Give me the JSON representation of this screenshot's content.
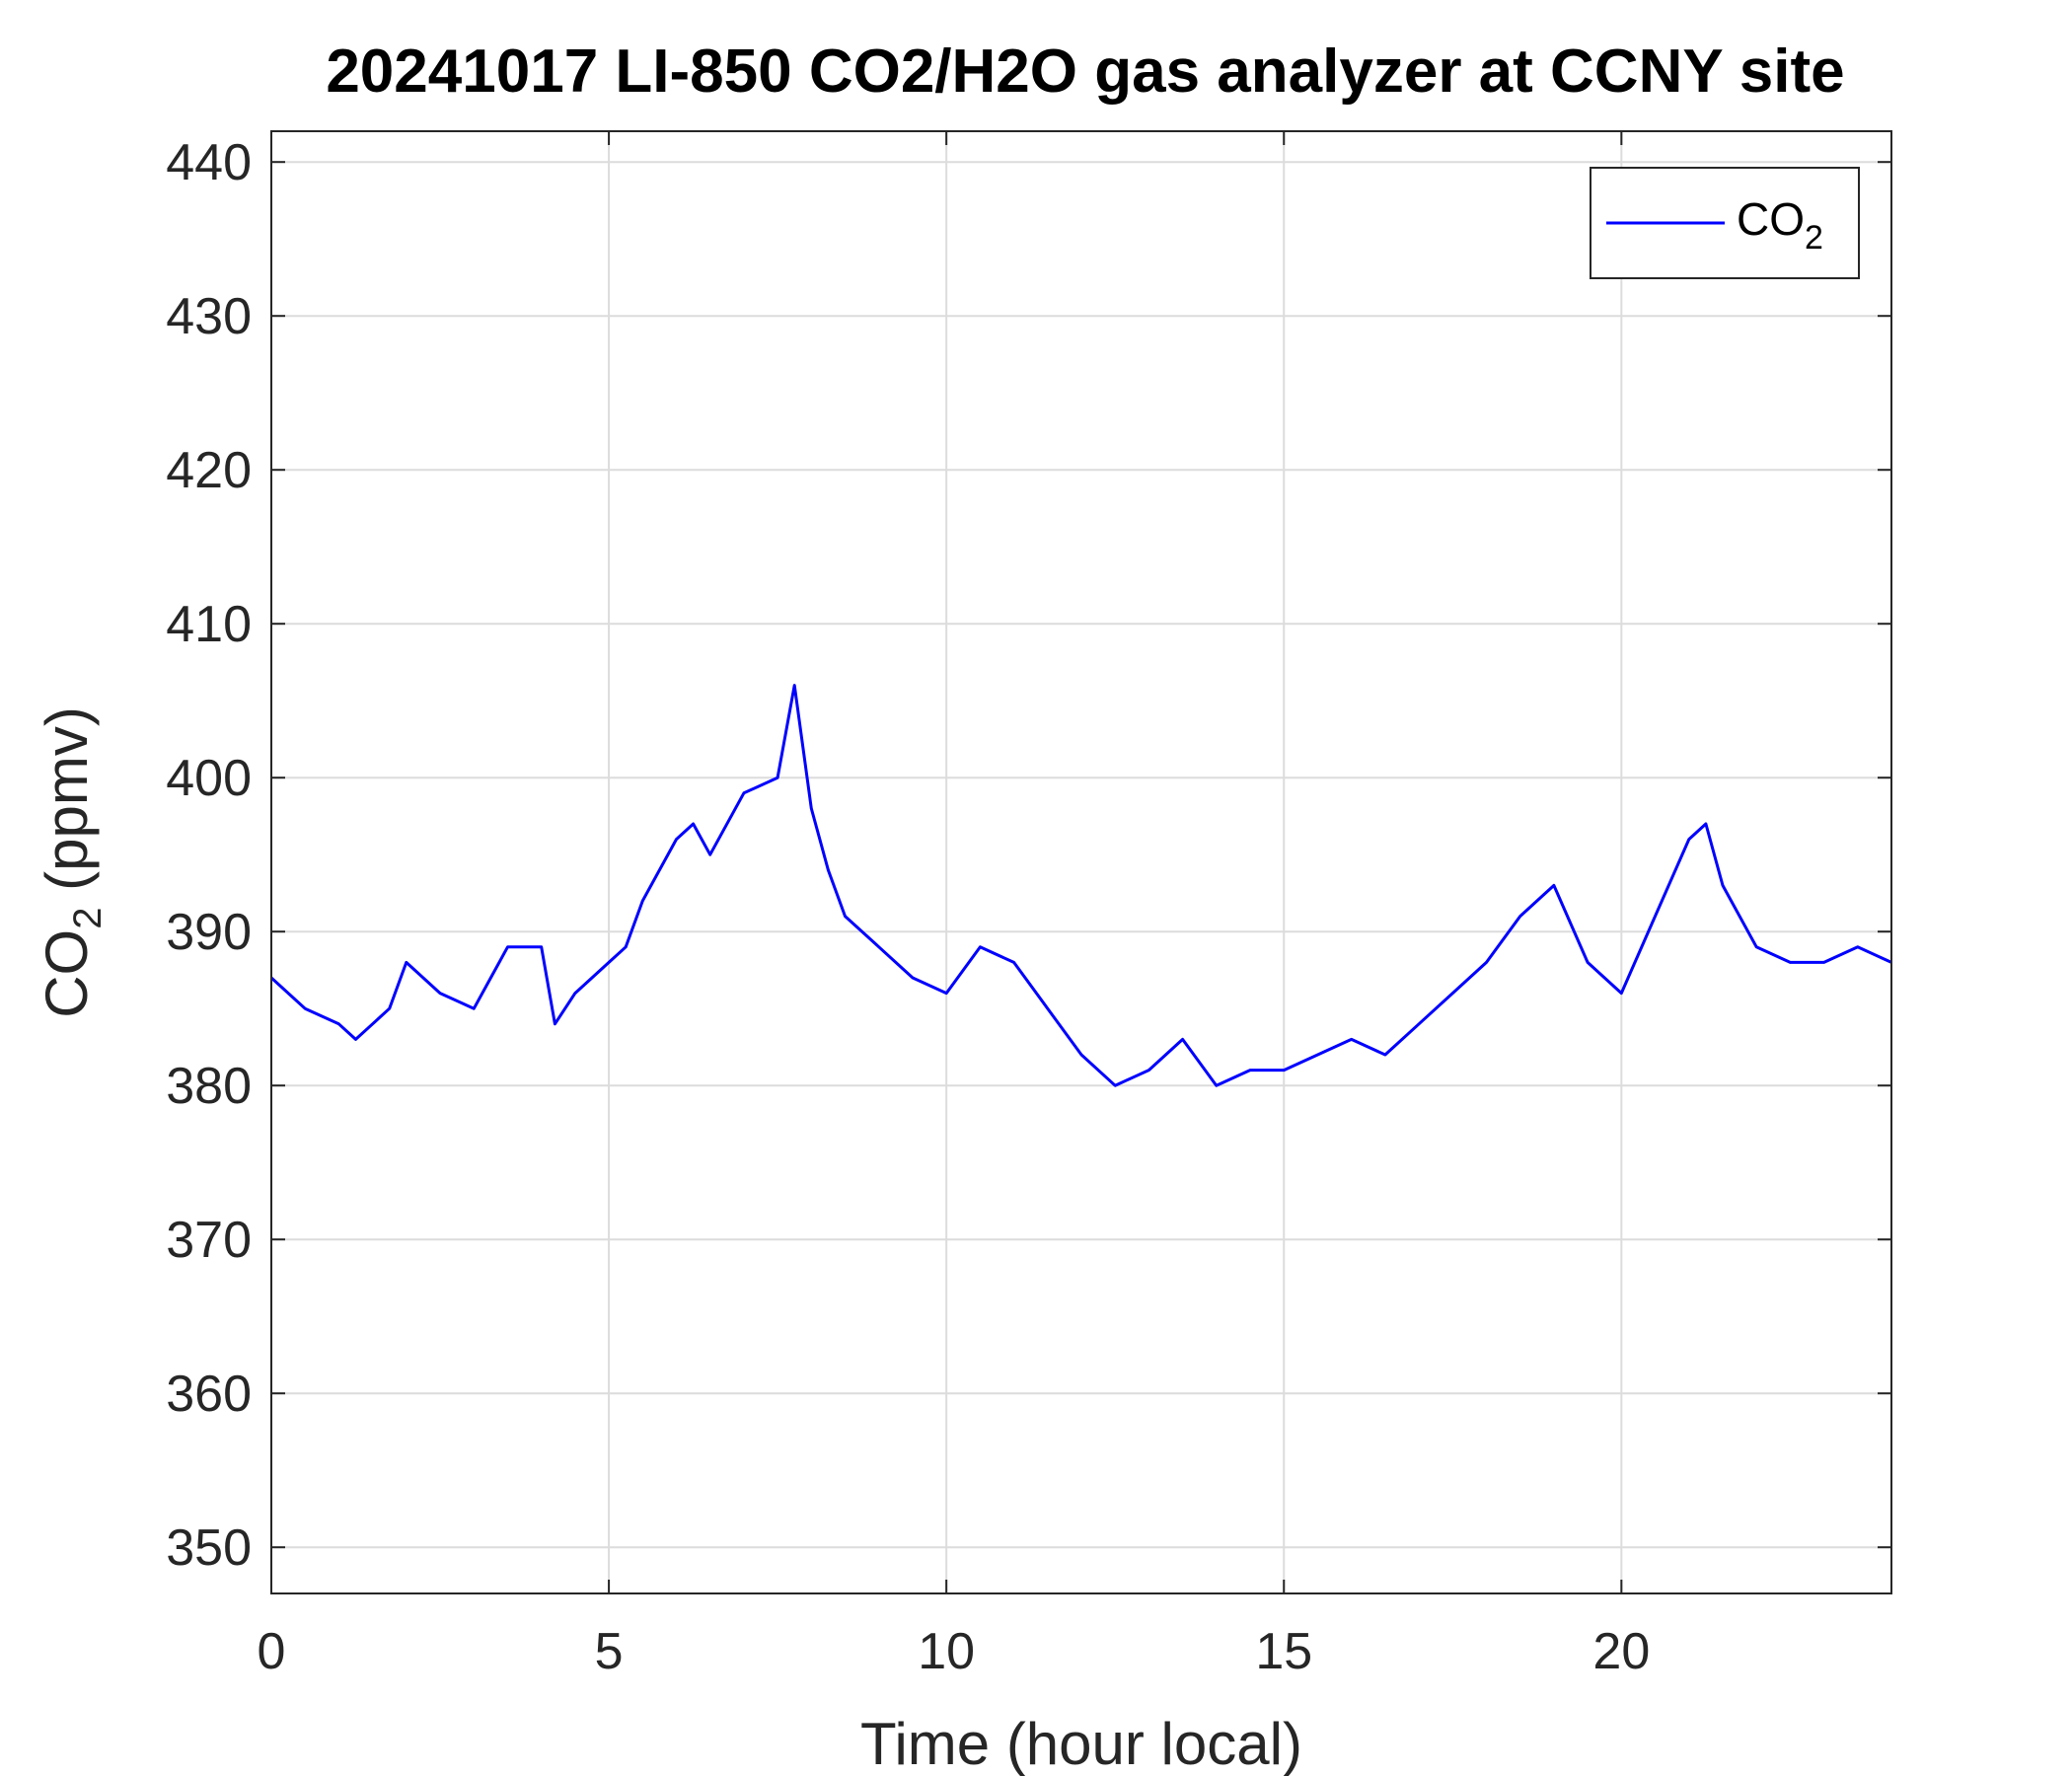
{
  "chart_data": {
    "type": "line",
    "title": "20241017 LI-850 CO2/H2O gas analyzer at CCNY site",
    "xlabel": "Time (hour local)",
    "ylabel_main": "CO",
    "ylabel_sub": "2",
    "ylabel_units": " (ppmv)",
    "xlim": [
      0,
      24
    ],
    "ylim": [
      347,
      442
    ],
    "xticks": [
      0,
      5,
      10,
      15,
      20
    ],
    "yticks": [
      350,
      360,
      370,
      380,
      390,
      400,
      410,
      420,
      430,
      440
    ],
    "grid": true,
    "legend": {
      "position": "top-right",
      "entries": [
        {
          "main": "CO",
          "sub": "2"
        }
      ]
    },
    "series": [
      {
        "color": "#0000ff",
        "x": [
          0,
          0.5,
          1.0,
          1.25,
          1.5,
          1.75,
          2.0,
          2.25,
          2.5,
          3.0,
          3.25,
          3.5,
          4.0,
          4.2,
          4.5,
          5.0,
          5.25,
          5.5,
          6.0,
          6.25,
          6.5,
          7.0,
          7.5,
          7.75,
          8.0,
          8.25,
          8.5,
          9.0,
          9.5,
          10.0,
          10.5,
          11.0,
          11.5,
          12.0,
          12.5,
          13.0,
          13.5,
          14.0,
          14.5,
          15.0,
          15.5,
          16.0,
          16.5,
          17.0,
          17.5,
          18.0,
          18.5,
          19.0,
          19.5,
          20.0,
          20.5,
          21.0,
          21.25,
          21.5,
          22.0,
          22.5,
          23.0,
          23.5,
          24.0
        ],
        "y": [
          387,
          385,
          384,
          383,
          384,
          385,
          388,
          387,
          386,
          385,
          387,
          389,
          389,
          384,
          386,
          388,
          389,
          392,
          396,
          397,
          395,
          399,
          400,
          406,
          398,
          394,
          391,
          389,
          387,
          386,
          389,
          388,
          385,
          382,
          380,
          381,
          383,
          380,
          381,
          381,
          382,
          383,
          382,
          384,
          386,
          388,
          391,
          393,
          388,
          386,
          391,
          396,
          397,
          393,
          389,
          388,
          388,
          389,
          388
        ]
      }
    ]
  }
}
